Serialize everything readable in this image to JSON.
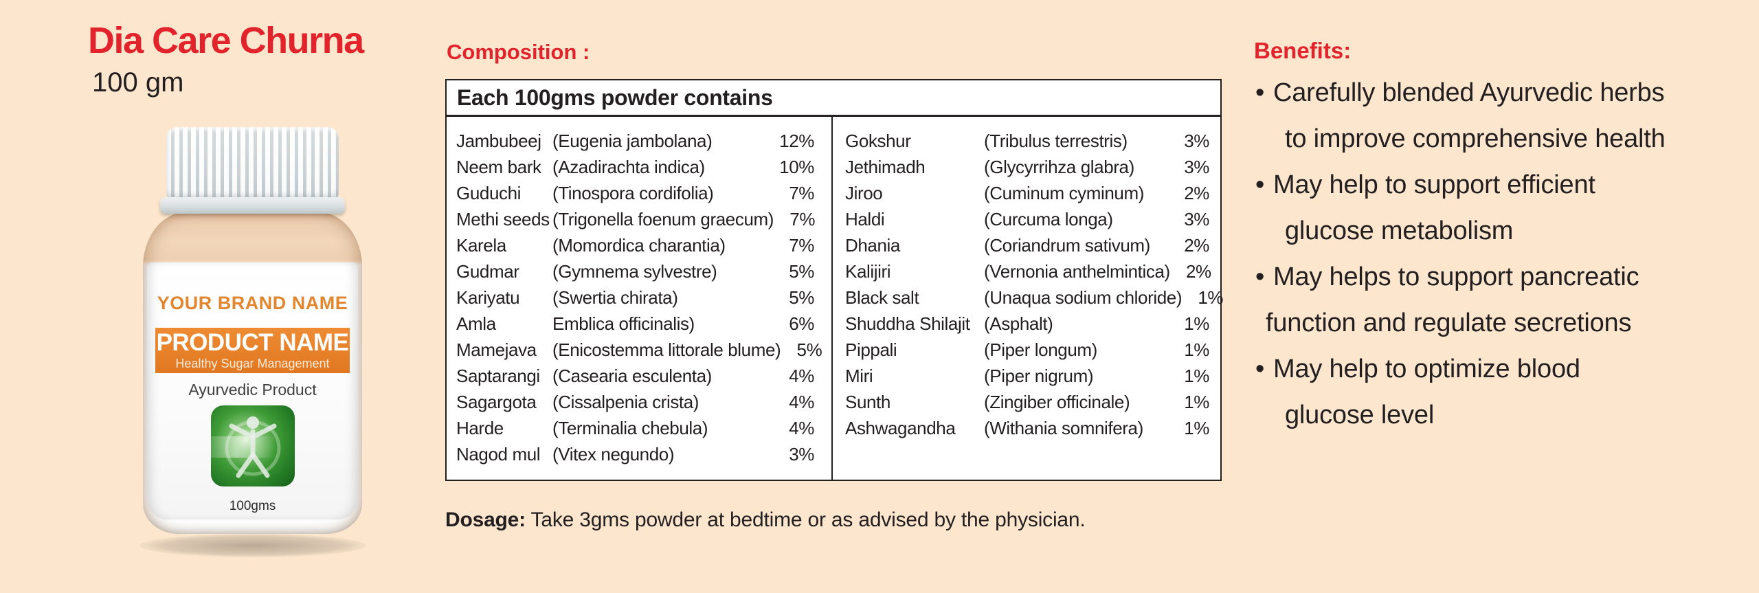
{
  "colors": {
    "background": "#FCE6CD",
    "accent_red": "#E3232B",
    "text_black": "#231F20",
    "label_orange": "#E8802C",
    "tile_green": "#2E8B2E",
    "powder_tan": "#EDCFB2"
  },
  "product": {
    "title": "Dia Care Churna",
    "weight": "100 gm",
    "bottle": {
      "brand": "YOUR BRAND NAME",
      "name": "PRODUCT NAME",
      "tagline": "Healthy Sugar Management",
      "type": "Ayurvedic Product",
      "size": "100gms",
      "tile_icon": "vitruvian-person-icon"
    }
  },
  "composition": {
    "heading": "Composition :",
    "table_header": "Each 100gms powder contains",
    "left_rows": [
      {
        "name": "Jambubeej",
        "latin": "(Eugenia jambolana)",
        "pct": "12%"
      },
      {
        "name": "Neem bark",
        "latin": "(Azadirachta indica)",
        "pct": "10%"
      },
      {
        "name": "Guduchi",
        "latin": "(Tinospora cordifolia)",
        "pct": "7%"
      },
      {
        "name": "Methi seeds",
        "latin": "(Trigonella foenum graecum)",
        "pct": "7%"
      },
      {
        "name": "Karela",
        "latin": "(Momordica charantia)",
        "pct": "7%"
      },
      {
        "name": "Gudmar",
        "latin": "(Gymnema sylvestre)",
        "pct": "5%"
      },
      {
        "name": "Kariyatu",
        "latin": "(Swertia chirata)",
        "pct": "5%"
      },
      {
        "name": "Amla",
        "latin": "Emblica officinalis)",
        "pct": "6%"
      },
      {
        "name": "Mamejava",
        "latin": "(Enicostemma littorale blume)",
        "pct": "5%"
      },
      {
        "name": "Saptarangi",
        "latin": "(Casearia esculenta)",
        "pct": "4%"
      },
      {
        "name": "Sagargota",
        "latin": "(Cissalpenia crista)",
        "pct": "4%"
      },
      {
        "name": "Harde",
        "latin": "(Terminalia chebula)",
        "pct": "4%"
      },
      {
        "name": "Nagod mul",
        "latin": "(Vitex negundo)",
        "pct": "3%"
      }
    ],
    "right_rows": [
      {
        "name": "Gokshur",
        "latin": "(Tribulus terrestris)",
        "pct": "3%"
      },
      {
        "name": "Jethimadh",
        "latin": "(Glycyrrihza glabra)",
        "pct": "3%"
      },
      {
        "name": "Jiroo",
        "latin": "(Cuminum cyminum)",
        "pct": "2%"
      },
      {
        "name": "Haldi",
        "latin": "(Curcuma longa)",
        "pct": "3%"
      },
      {
        "name": "Dhania",
        "latin": "(Coriandrum sativum)",
        "pct": "2%"
      },
      {
        "name": "Kalijiri",
        "latin": "(Vernonia anthelmintica)",
        "pct": "2%"
      },
      {
        "name": "Black salt",
        "latin": "(Unaqua sodium chloride)",
        "pct": "1%"
      },
      {
        "name": "Shuddha Shilajit",
        "latin": "(Asphalt)",
        "pct": "1%"
      },
      {
        "name": "Pippali",
        "latin": "(Piper longum)",
        "pct": "1%"
      },
      {
        "name": "Miri",
        "latin": "(Piper nigrum)",
        "pct": "1%"
      },
      {
        "name": "Sunth",
        "latin": "(Zingiber officinale)",
        "pct": "1%"
      },
      {
        "name": "Ashwagandha",
        "latin": "(Withania somnifera)",
        "pct": "1%"
      }
    ]
  },
  "dosage": {
    "label": "Dosage:",
    "text": " Take 3gms powder at bedtime or as advised by the physician."
  },
  "benefits": {
    "heading": "Benefits:",
    "bullet_char": "•",
    "items": [
      {
        "lines": [
          "Carefully blended Ayurvedic herbs",
          "to improve comprehensive health"
        ]
      },
      {
        "lines": [
          "May help to support efficient",
          "glucose metabolism"
        ]
      },
      {
        "lines": [
          "May helps to support pancreatic",
          "function and regulate secretions"
        ],
        "wrap_outdent": true
      },
      {
        "lines": [
          "May help to optimize blood",
          "glucose level"
        ]
      }
    ]
  }
}
